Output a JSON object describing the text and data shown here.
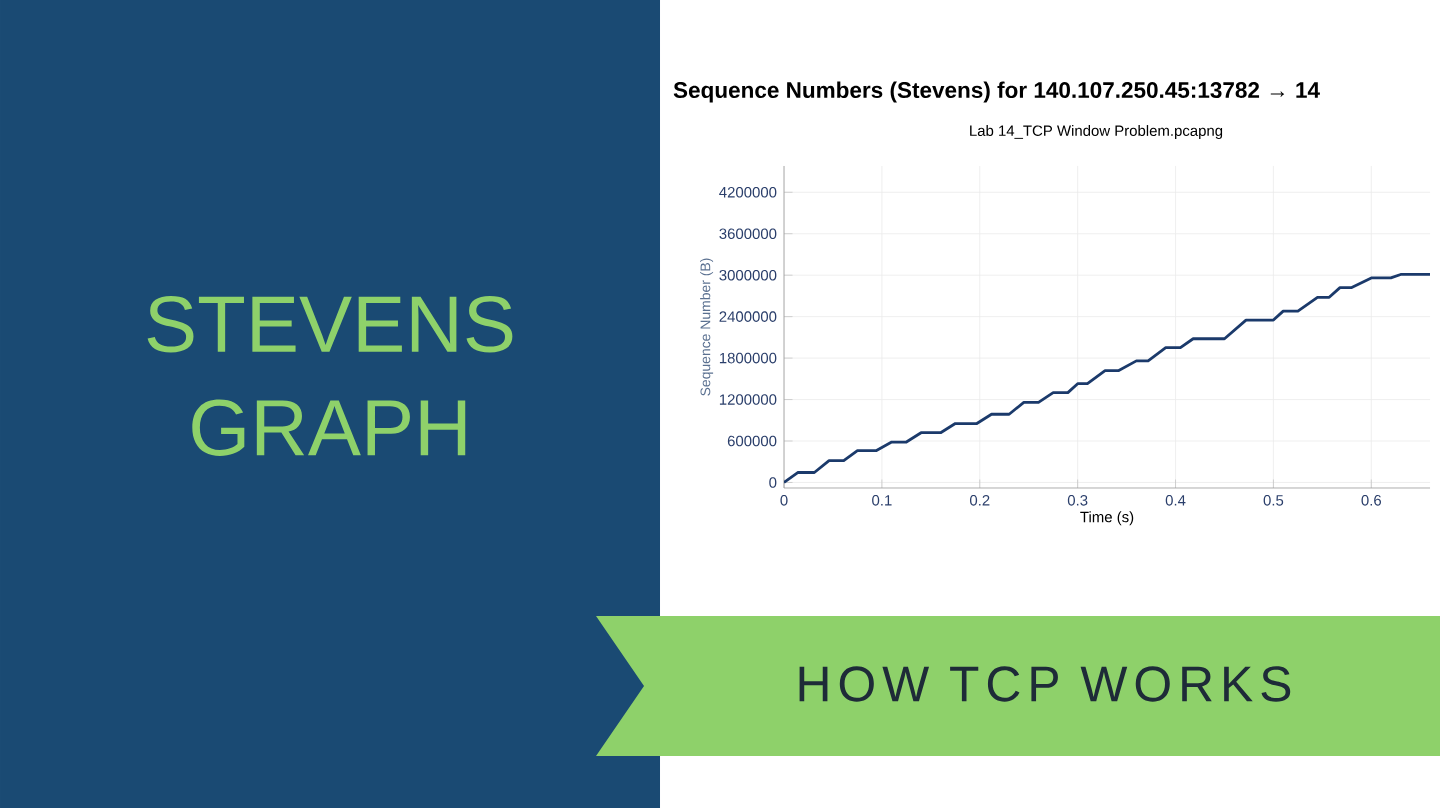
{
  "chart_data": {
    "type": "line",
    "title": "Sequence Numbers (Stevens) for 140.107.250.45:13782 → 14",
    "subtitle": "Lab 14_TCP Window Problem.pcapng",
    "xlabel": "Time (s)",
    "ylabel": "Sequence Number (B)",
    "annotations": [
      "STEVENS GRAPH",
      "HOW TCP WORKS"
    ],
    "x": [
      0,
      0.014,
      0.031,
      0.046,
      0.061,
      0.075,
      0.094,
      0.11,
      0.125,
      0.14,
      0.16,
      0.175,
      0.197,
      0.212,
      0.23,
      0.245,
      0.26,
      0.275,
      0.29,
      0.3,
      0.31,
      0.328,
      0.342,
      0.36,
      0.372,
      0.39,
      0.405,
      0.418,
      0.45,
      0.472,
      0.5,
      0.51,
      0.525,
      0.545,
      0.557,
      0.568,
      0.58,
      0.6,
      0.62,
      0.63,
      0.66
    ],
    "series": [
      {
        "color": "#1b3a6b",
        "values": [
          0,
          144000,
          144000,
          316000,
          316000,
          460000,
          460000,
          585000,
          585000,
          720000,
          720000,
          853000,
          853000,
          987000,
          987000,
          1160000,
          1160000,
          1300000,
          1300000,
          1430000,
          1430000,
          1620000,
          1620000,
          1760000,
          1760000,
          1950000,
          1950000,
          2080000,
          2080000,
          2350000,
          2350000,
          2480000,
          2480000,
          2680000,
          2680000,
          2820000,
          2820000,
          2960000,
          2960000,
          3010000,
          3010000
        ]
      }
    ],
    "xlim": [
      0,
      0.66
    ],
    "ylim": [
      -80000,
      4580000
    ],
    "xticks": [
      0,
      0.1,
      0.2,
      0.3,
      0.4,
      0.5,
      0.6
    ],
    "yticks": [
      0,
      600000,
      1200000,
      1800000,
      2400000,
      3000000,
      3600000,
      4200000
    ],
    "grid": true
  }
}
